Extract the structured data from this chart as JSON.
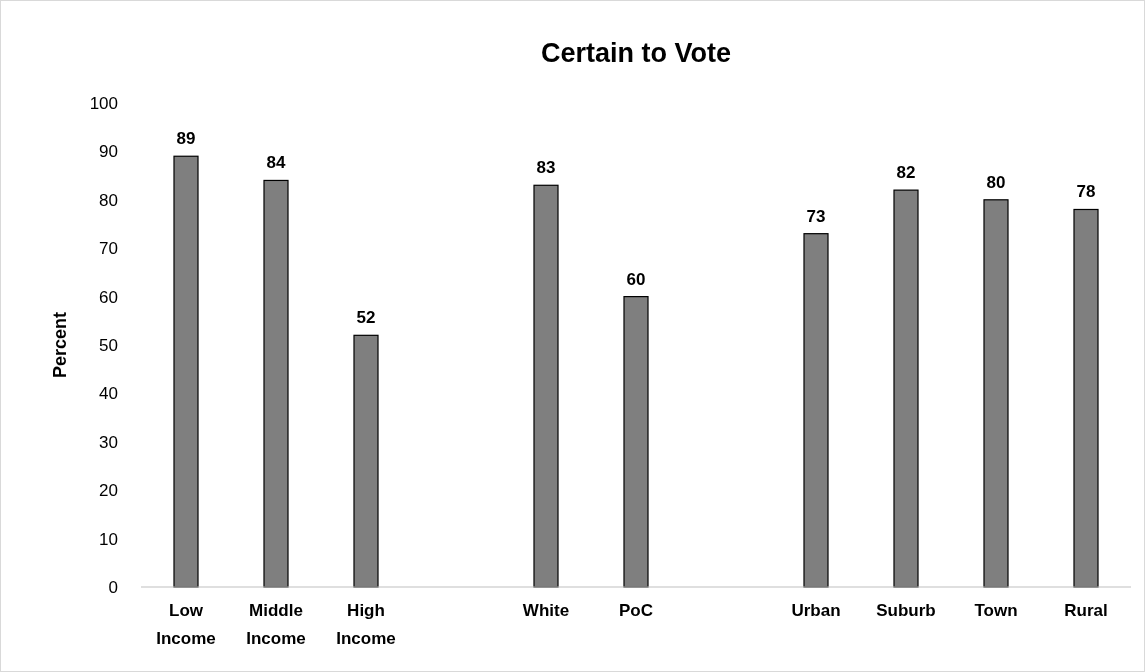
{
  "chart_data": {
    "type": "bar",
    "title": "Certain to Vote",
    "ylabel": "Percent",
    "categories": [
      "Low Income",
      "Middle Income",
      "High Income",
      null,
      "White",
      "PoC",
      null,
      "Urban",
      "Suburb",
      "Town",
      "Rural"
    ],
    "values": [
      89,
      84,
      52,
      null,
      83,
      60,
      null,
      73,
      82,
      80,
      78
    ],
    "color": "#7f7f7f",
    "ylim": [
      0,
      100
    ],
    "yticks": [
      0,
      10,
      20,
      30,
      40,
      50,
      60,
      70,
      80,
      90,
      100
    ],
    "data_labels": true,
    "grid": false
  }
}
